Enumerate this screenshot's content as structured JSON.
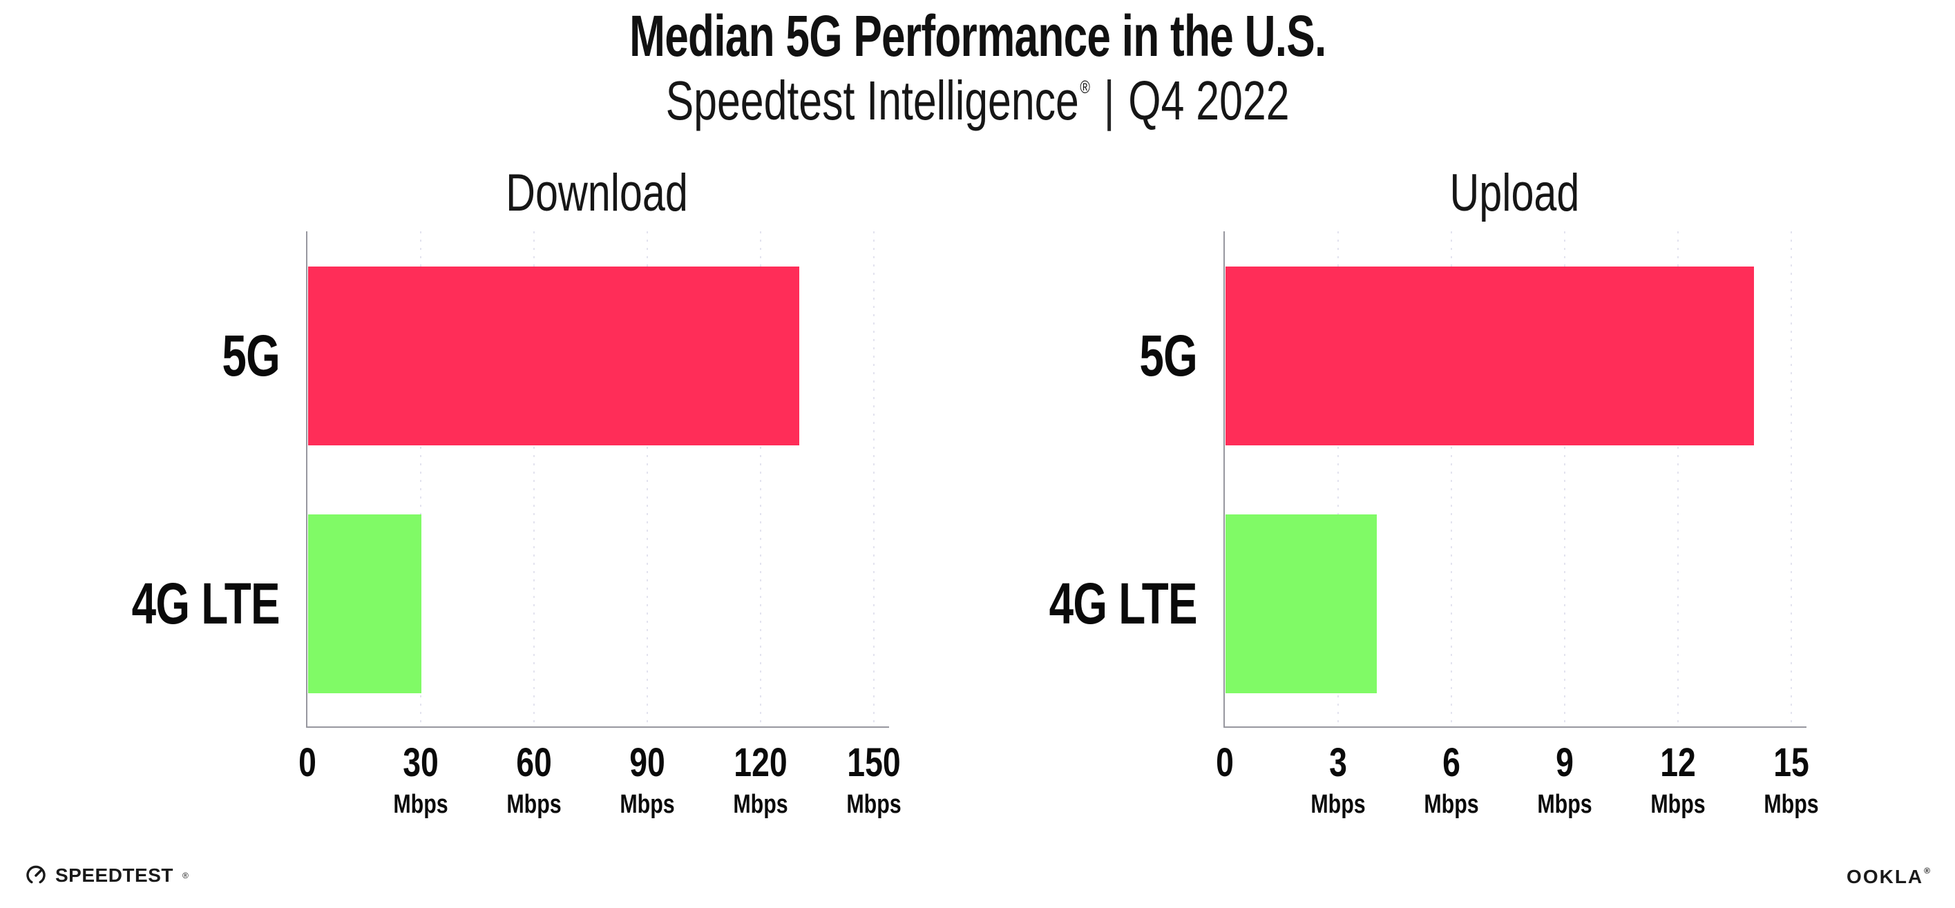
{
  "header": {
    "title": "Median 5G Performance in the U.S.",
    "subtitle": {
      "brand": "Speedtest Intelligence",
      "registered_mark": "®",
      "divider": "|",
      "period": "Q4 2022"
    }
  },
  "chart_data": [
    {
      "type": "bar",
      "orientation": "horizontal",
      "title": "Download",
      "categories": [
        "5G",
        "4G LTE"
      ],
      "values": [
        130,
        30
      ],
      "unit": "Mbps",
      "xlim": [
        0,
        150
      ],
      "xticks": [
        0,
        30,
        60,
        90,
        120,
        150
      ],
      "bar_colors": [
        "#FF2D58",
        "#80FA66"
      ],
      "grid": "dotted vertical gridlines at each tick",
      "legend": "none"
    },
    {
      "type": "bar",
      "orientation": "horizontal",
      "title": "Upload",
      "categories": [
        "5G",
        "4G LTE"
      ],
      "values": [
        14,
        4
      ],
      "unit": "Mbps",
      "xlim": [
        0,
        15
      ],
      "xticks": [
        0,
        3,
        6,
        9,
        12,
        15
      ],
      "bar_colors": [
        "#FF2D58",
        "#80FA66"
      ],
      "grid": "dotted vertical gridlines at each tick",
      "legend": "none"
    }
  ],
  "footer": {
    "speedtest_wordmark": "SPEEDTEST",
    "speedtest_mark": "®",
    "ookla_wordmark": "OOKLA",
    "ookla_mark": "®"
  },
  "colors": {
    "bar_5g": "#FF2D58",
    "bar_4g_lte": "#80FA66",
    "gridline": "#E3E3EF",
    "axis": "#97979F",
    "text": "#111111"
  }
}
